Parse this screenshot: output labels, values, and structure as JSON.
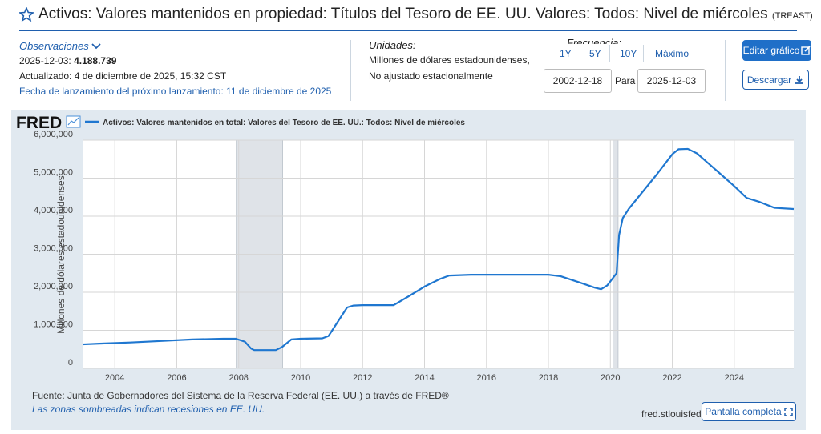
{
  "header": {
    "title": "Activos: Valores mantenidos en propiedad: Títulos del Tesoro de EE. UU. Valores: Todos: Nivel de miércoles",
    "code": "(TREAST)"
  },
  "observations": {
    "label": "Observaciones",
    "date": "2025-12-03:",
    "value": "4.188.739",
    "updated": "Actualizado: 4 de diciembre de 2025, 15:32 CST",
    "next_release": "Fecha de lanzamiento del próximo lanzamiento: 11 de diciembre de 2025"
  },
  "units": {
    "label": "Unidades:",
    "line1": "Millones de dólares estadounidenses,",
    "line2": "No ajustado estacionalmente"
  },
  "frequency": {
    "label": "Frecuencia:",
    "ranges": [
      "1Y",
      "5Y",
      "10Y",
      "Máximo"
    ],
    "start": "2002-12-18",
    "to_label": "Para",
    "end": "2025-12-03"
  },
  "buttons": {
    "edit": "Editar gráfico",
    "download": "Descargar"
  },
  "chart_data": {
    "type": "line",
    "logo": "FRED",
    "ylabel": "Millones de dólares estadounidenses",
    "x": [
      2002.96,
      2003.5,
      2004.5,
      2005.5,
      2006.5,
      2007.5,
      2007.9,
      2008.0,
      2008.2,
      2008.4,
      2008.5,
      2009.2,
      2009.4,
      2009.7,
      2010.0,
      2010.7,
      2010.9,
      2011.5,
      2011.7,
      2012.0,
      2013.0,
      2013.5,
      2014.0,
      2014.5,
      2014.8,
      2015.5,
      2017.0,
      2018.0,
      2018.4,
      2019.0,
      2019.5,
      2019.7,
      2019.9,
      2020.2,
      2020.28,
      2020.4,
      2020.6,
      2021.0,
      2021.5,
      2022.0,
      2022.2,
      2022.5,
      2022.8,
      2023.5,
      2024.0,
      2024.4,
      2024.8,
      2025.3,
      2025.92
    ],
    "series": [
      {
        "name": "Activos: Valores mantenidos en total: Valores del Tesoro de EE. UU.: Todos: Nivel de miércoles",
        "color": "#1f77d0",
        "values": [
          630000,
          650000,
          680000,
          720000,
          760000,
          780000,
          780000,
          755000,
          700000,
          520000,
          480000,
          480000,
          560000,
          760000,
          780000,
          790000,
          850000,
          1600000,
          1650000,
          1660000,
          1660000,
          1900000,
          2150000,
          2350000,
          2440000,
          2460000,
          2460000,
          2460000,
          2420000,
          2260000,
          2120000,
          2080000,
          2180000,
          2500000,
          3500000,
          3950000,
          4200000,
          4600000,
          5100000,
          5630000,
          5760000,
          5770000,
          5650000,
          5150000,
          4790000,
          4480000,
          4380000,
          4220000,
          4188739
        ]
      }
    ],
    "recessions": [
      [
        2007.92,
        2009.42
      ],
      [
        2020.08,
        2020.25
      ]
    ],
    "xlim": [
      2002.96,
      2025.92
    ],
    "ylim": [
      0,
      6000000
    ],
    "xticks": [
      2004,
      2006,
      2008,
      2010,
      2012,
      2014,
      2016,
      2018,
      2020,
      2022,
      2024
    ],
    "yticks": [
      0,
      {
        "value": 1000000,
        "label": "1,000,000"
      },
      {
        "value": 2000000,
        "label": "2,000,000"
      },
      {
        "value": 3000000,
        "label": "3,000,000"
      },
      {
        "value": 4000000,
        "label": "4,000,000"
      },
      {
        "value": 5000000,
        "label": "5,000,000"
      },
      {
        "value": 6000000,
        "label": "6,000,000"
      }
    ],
    "grid": true
  },
  "footer": {
    "source": "Fuente: Junta de Gobernadores del Sistema de la Reserva Federal (EE. UU.) a través de FRED®",
    "recession_note": "Las zonas sombreadas indican recesiones en EE. UU.",
    "site": "fred.stlouisfed.org",
    "fullscreen": "Pantalla completa"
  }
}
